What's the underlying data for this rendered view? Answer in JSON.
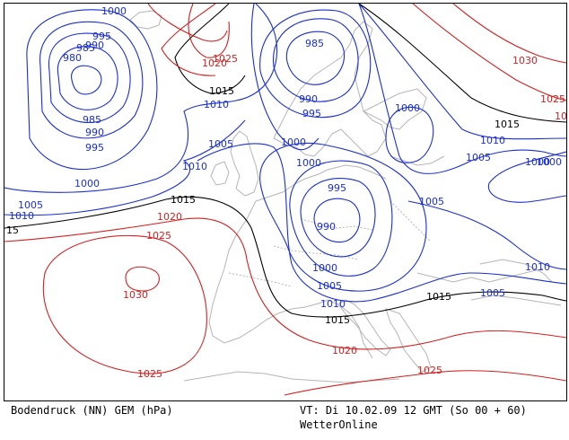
{
  "footer": {
    "title": "Bodendruck (NN) GEM (hPa)",
    "valid_time": "VT: Di 10.02.09 12 GMT (So 00 + 60)",
    "brand": "WetterOnline"
  },
  "colors": {
    "low": "#1a2fd0",
    "neutral": "#000000",
    "high": "#d42020",
    "coast": "#b5b5b5"
  },
  "isobar_labels": [
    {
      "text": "1000",
      "class": "low"
    },
    {
      "text": "995",
      "class": "low"
    },
    {
      "text": "990",
      "class": "low"
    },
    {
      "text": "985",
      "class": "low"
    },
    {
      "text": "980",
      "class": "low"
    },
    {
      "text": "985",
      "class": "low"
    },
    {
      "text": "990",
      "class": "low"
    },
    {
      "text": "995",
      "class": "low"
    },
    {
      "text": "1000",
      "class": "low"
    },
    {
      "text": "1005",
      "class": "low"
    },
    {
      "text": "1010",
      "class": "low"
    },
    {
      "text": "1010",
      "class": "low"
    },
    {
      "text": "1015",
      "class": "neutral"
    },
    {
      "text": "15",
      "class": "neutral"
    },
    {
      "text": "1020",
      "class": "high"
    },
    {
      "text": "1025",
      "class": "high"
    },
    {
      "text": "1030",
      "class": "high"
    },
    {
      "text": "1025",
      "class": "high"
    },
    {
      "text": "1020",
      "class": "high"
    },
    {
      "text": "1025",
      "class": "high"
    },
    {
      "text": "1015",
      "class": "neutral"
    },
    {
      "text": "1010",
      "class": "low"
    },
    {
      "text": "1005",
      "class": "low"
    },
    {
      "text": "985",
      "class": "low"
    },
    {
      "text": "990",
      "class": "low"
    },
    {
      "text": "995",
      "class": "low"
    },
    {
      "text": "1000",
      "class": "low"
    },
    {
      "text": "1000",
      "class": "low"
    },
    {
      "text": "995",
      "class": "low"
    },
    {
      "text": "990",
      "class": "low"
    },
    {
      "text": "1000",
      "class": "low"
    },
    {
      "text": "1005",
      "class": "low"
    },
    {
      "text": "1010",
      "class": "low"
    },
    {
      "text": "1015",
      "class": "neutral"
    },
    {
      "text": "1015",
      "class": "neutral"
    },
    {
      "text": "1020",
      "class": "high"
    },
    {
      "text": "1025",
      "class": "high"
    },
    {
      "text": "1000",
      "class": "low"
    },
    {
      "text": "1005",
      "class": "low"
    },
    {
      "text": "1010",
      "class": "low"
    },
    {
      "text": "1015",
      "class": "neutral"
    },
    {
      "text": "1005",
      "class": "low"
    },
    {
      "text": "1010",
      "class": "low"
    },
    {
      "text": "1000",
      "class": "low"
    },
    {
      "text": "1005",
      "class": "low"
    },
    {
      "text": "1030",
      "class": "high"
    },
    {
      "text": "1025",
      "class": "high"
    },
    {
      "text": "10",
      "class": "high"
    },
    {
      "text": "1000",
      "class": "low"
    }
  ]
}
